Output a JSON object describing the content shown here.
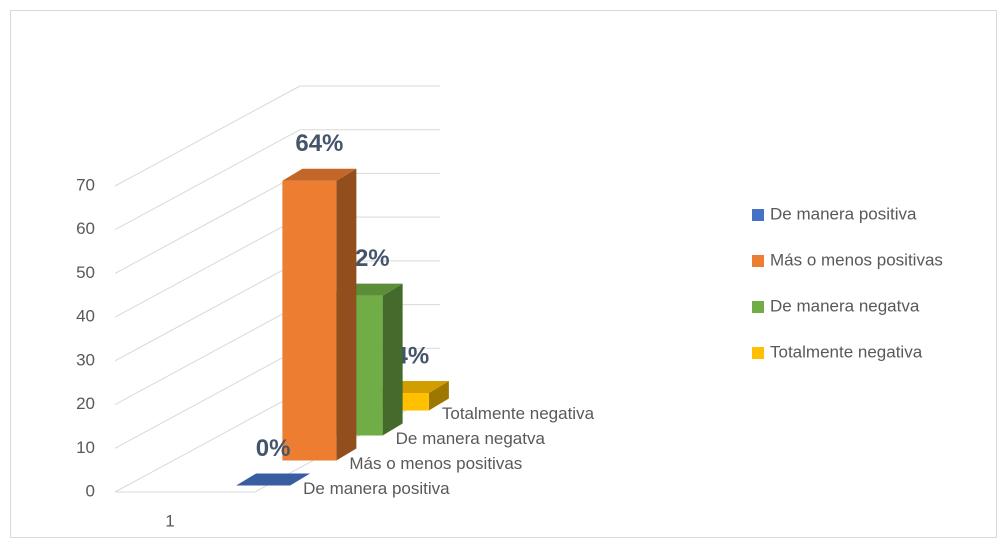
{
  "chart_data": {
    "type": "bar3d",
    "categories": [
      "1"
    ],
    "series": [
      {
        "name": "De manera positiva",
        "color": "#4472c4",
        "values": [
          0
        ],
        "value_labels": [
          "0%"
        ]
      },
      {
        "name": "Más o menos positivas",
        "color": "#ed7d31",
        "values": [
          64
        ],
        "value_labels": [
          "64%"
        ]
      },
      {
        "name": "De manera negatva",
        "color": "#70ad47",
        "values": [
          32
        ],
        "value_labels": [
          "32%"
        ]
      },
      {
        "name": "Totalmente negativa",
        "color": "#ffc000",
        "values": [
          4
        ],
        "value_labels": [
          "4%"
        ]
      }
    ],
    "ylim": [
      0,
      70
    ],
    "yticks": [
      0,
      10,
      20,
      30,
      40,
      50,
      60,
      70
    ],
    "grid": true,
    "legend": "right"
  }
}
